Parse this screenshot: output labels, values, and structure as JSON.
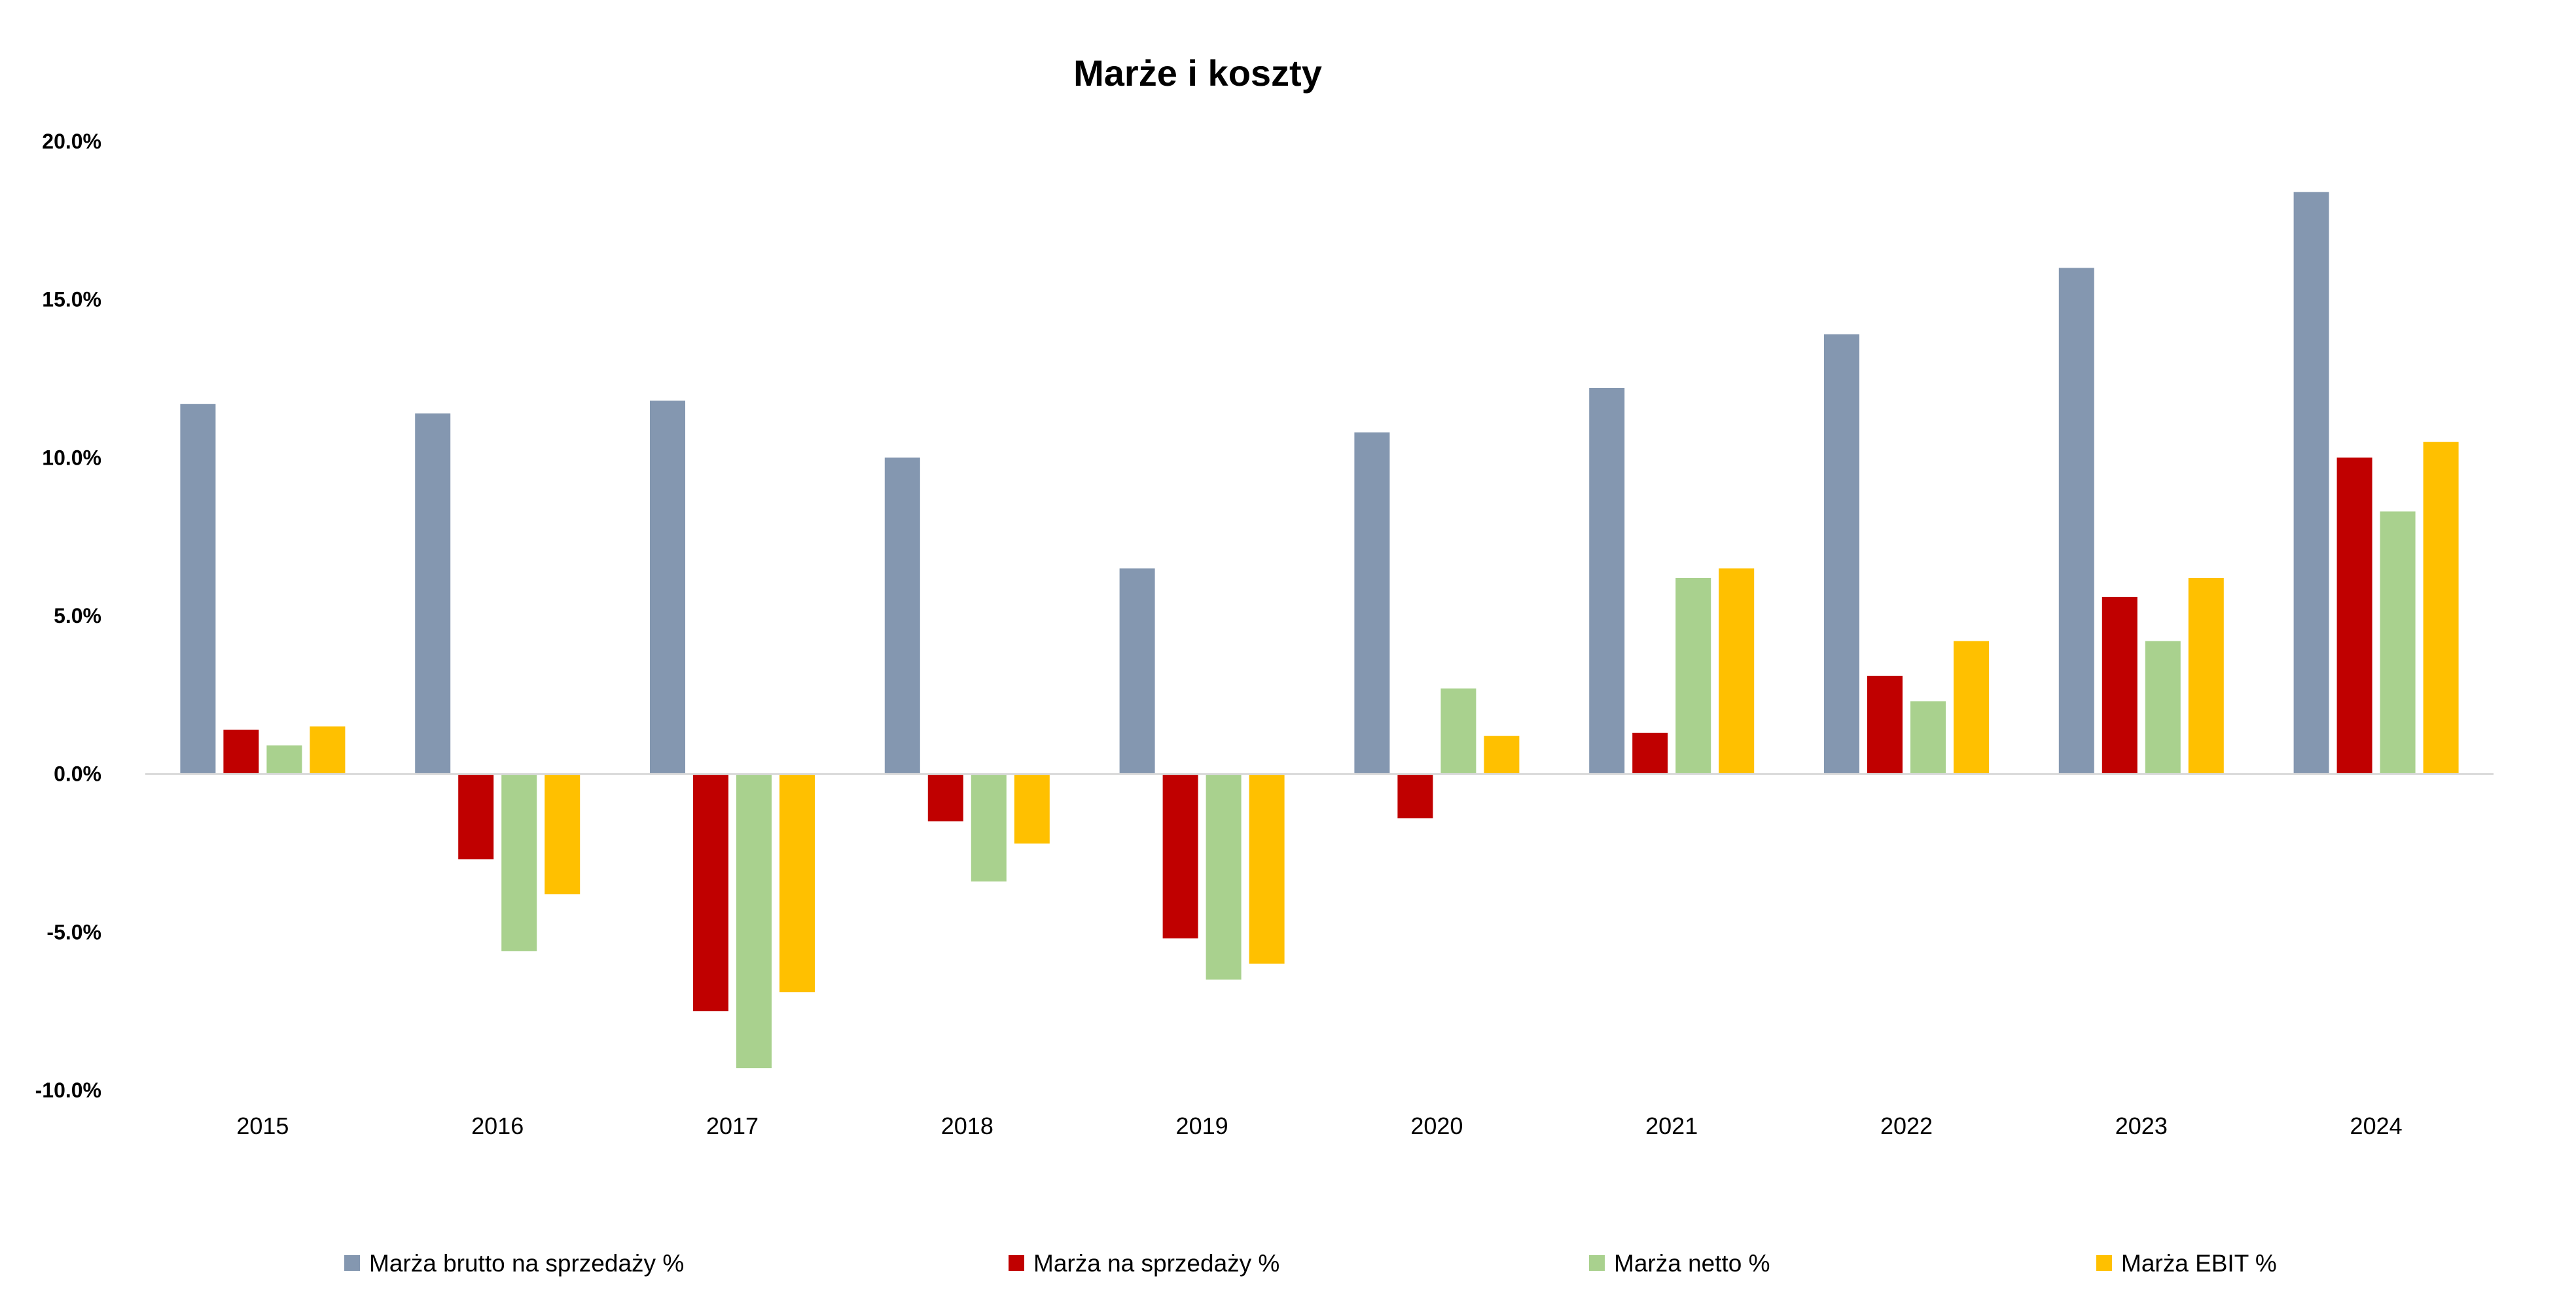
{
  "chart_data": {
    "type": "bar",
    "title": "Marże i koszty",
    "xlabel": "",
    "ylabel": "",
    "categories": [
      "2015",
      "2016",
      "2017",
      "2018",
      "2019",
      "2020",
      "2021",
      "2022",
      "2023",
      "2024"
    ],
    "ylim": [
      -10,
      20
    ],
    "yticks": [
      20,
      15,
      10,
      5,
      0,
      -5,
      -10
    ],
    "ytick_labels": [
      "20.0%",
      "15.0%",
      "10.0%",
      "5.0%",
      "0.0%",
      "-5.0%",
      "-10.0%"
    ],
    "grid": false,
    "legend_position": "bottom",
    "series": [
      {
        "name": "Marża brutto na sprzedaży %",
        "color": "#8497B0",
        "values": [
          11.7,
          11.4,
          11.8,
          10.0,
          6.5,
          10.8,
          12.2,
          13.9,
          16.0,
          18.4
        ]
      },
      {
        "name": "Marża na sprzedaży %",
        "color": "#C00000",
        "values": [
          1.4,
          -2.7,
          -7.5,
          -1.5,
          -5.2,
          -1.4,
          1.3,
          3.1,
          5.6,
          10.0
        ]
      },
      {
        "name": "Marża netto %",
        "color": "#A9D18E",
        "values": [
          0.9,
          -5.6,
          -9.3,
          -3.4,
          -6.5,
          2.7,
          6.2,
          2.3,
          4.2,
          8.3
        ]
      },
      {
        "name": "Marża EBIT %",
        "color": "#FFC000",
        "values": [
          1.5,
          -3.8,
          -6.9,
          -2.2,
          -6.0,
          1.2,
          6.5,
          4.2,
          6.2,
          10.5
        ]
      }
    ]
  }
}
